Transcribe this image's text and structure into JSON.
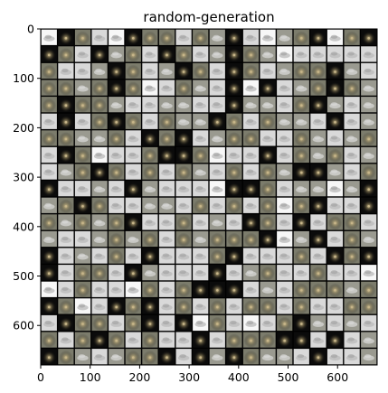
{
  "chart_data": {
    "type": "heatmap",
    "title": "random-generation",
    "xlabel": "",
    "ylabel": "",
    "xlim": [
      0,
      680
    ],
    "ylim": [
      680,
      0
    ],
    "x_ticks": [
      0,
      100,
      200,
      300,
      400,
      500,
      600
    ],
    "y_ticks": [
      0,
      100,
      200,
      300,
      400,
      500,
      600
    ],
    "grid": false,
    "legend": "none",
    "tile_grid": {
      "rows": 20,
      "cols": 20,
      "tile_size_units": 34
    },
    "colors": {
      "axes": "#000000",
      "separator": "#000000",
      "tile_dark": "#0b0b0b",
      "tile_olive": "#7c7c6c",
      "tile_gray": "#9a9a90",
      "tile_light": "#d9d9d9",
      "tile_white": "#f7f7f7",
      "glow": "#c8b68a",
      "cloud": "#eeeeee"
    },
    "tile_pattern": [
      [
        4,
        0,
        1,
        3,
        4,
        0,
        1,
        1,
        3,
        1,
        2,
        0,
        3,
        4,
        2,
        1,
        0,
        4,
        1,
        0
      ],
      [
        0,
        1,
        3,
        0,
        2,
        1,
        3,
        0,
        1,
        3,
        2,
        0,
        1,
        2,
        4,
        3,
        3,
        3,
        3,
        3
      ],
      [
        1,
        3,
        3,
        2,
        0,
        1,
        3,
        2,
        0,
        1,
        3,
        0,
        1,
        3,
        2,
        1,
        1,
        0,
        2,
        3
      ],
      [
        1,
        1,
        2,
        1,
        0,
        1,
        4,
        3,
        1,
        2,
        3,
        0,
        4,
        0,
        3,
        2,
        1,
        0,
        1,
        2
      ],
      [
        1,
        0,
        1,
        1,
        2,
        3,
        3,
        2,
        2,
        3,
        3,
        0,
        2,
        2,
        3,
        1,
        0,
        2,
        3,
        2
      ],
      [
        3,
        0,
        3,
        1,
        0,
        1,
        3,
        1,
        2,
        2,
        0,
        1,
        3,
        1,
        2,
        2,
        3,
        0,
        3,
        2
      ],
      [
        1,
        1,
        2,
        2,
        1,
        3,
        0,
        1,
        0,
        3,
        2,
        1,
        1,
        3,
        3,
        1,
        2,
        3,
        2,
        1
      ],
      [
        3,
        0,
        1,
        4,
        3,
        3,
        1,
        0,
        0,
        1,
        4,
        3,
        3,
        0,
        3,
        1,
        2,
        1,
        3,
        2
      ],
      [
        3,
        2,
        1,
        0,
        1,
        3,
        1,
        3,
        1,
        2,
        3,
        1,
        3,
        1,
        2,
        0,
        0,
        2,
        3,
        1
      ],
      [
        0,
        3,
        3,
        2,
        3,
        0,
        2,
        3,
        3,
        3,
        4,
        0,
        0,
        1,
        3,
        2,
        2,
        4,
        2,
        0
      ],
      [
        2,
        1,
        0,
        1,
        3,
        3,
        2,
        2,
        3,
        1,
        3,
        1,
        3,
        1,
        4,
        1,
        0,
        3,
        3,
        0
      ],
      [
        1,
        2,
        1,
        2,
        1,
        0,
        3,
        3,
        1,
        3,
        2,
        3,
        0,
        1,
        3,
        0,
        3,
        1,
        1,
        3
      ],
      [
        2,
        3,
        3,
        2,
        1,
        2,
        1,
        3,
        1,
        2,
        1,
        1,
        1,
        0,
        4,
        2,
        0,
        3,
        1,
        2
      ],
      [
        0,
        3,
        2,
        3,
        1,
        3,
        0,
        3,
        3,
        3,
        1,
        0,
        3,
        3,
        3,
        1,
        3,
        0,
        1,
        0
      ],
      [
        0,
        3,
        1,
        1,
        3,
        0,
        2,
        3,
        3,
        3,
        0,
        3,
        2,
        1,
        3,
        3,
        1,
        3,
        3,
        4
      ],
      [
        4,
        3,
        1,
        3,
        3,
        4,
        1,
        3,
        1,
        0,
        0,
        0,
        3,
        2,
        3,
        1,
        1,
        1,
        2,
        1
      ],
      [
        0,
        1,
        4,
        3,
        0,
        1,
        0,
        3,
        1,
        3,
        1,
        3,
        1,
        1,
        3,
        1,
        3,
        3,
        1,
        1
      ],
      [
        3,
        0,
        1,
        1,
        3,
        1,
        0,
        3,
        0,
        4,
        1,
        3,
        4,
        3,
        1,
        0,
        2,
        3,
        2,
        3
      ],
      [
        1,
        3,
        1,
        0,
        1,
        3,
        1,
        3,
        3,
        0,
        3,
        1,
        1,
        1,
        0,
        0,
        3,
        0,
        3,
        2
      ],
      [
        0,
        1,
        2,
        3,
        2,
        1,
        1,
        0,
        3,
        0,
        2,
        0,
        1,
        2,
        2,
        3,
        0,
        3,
        3,
        2
      ]
    ]
  }
}
